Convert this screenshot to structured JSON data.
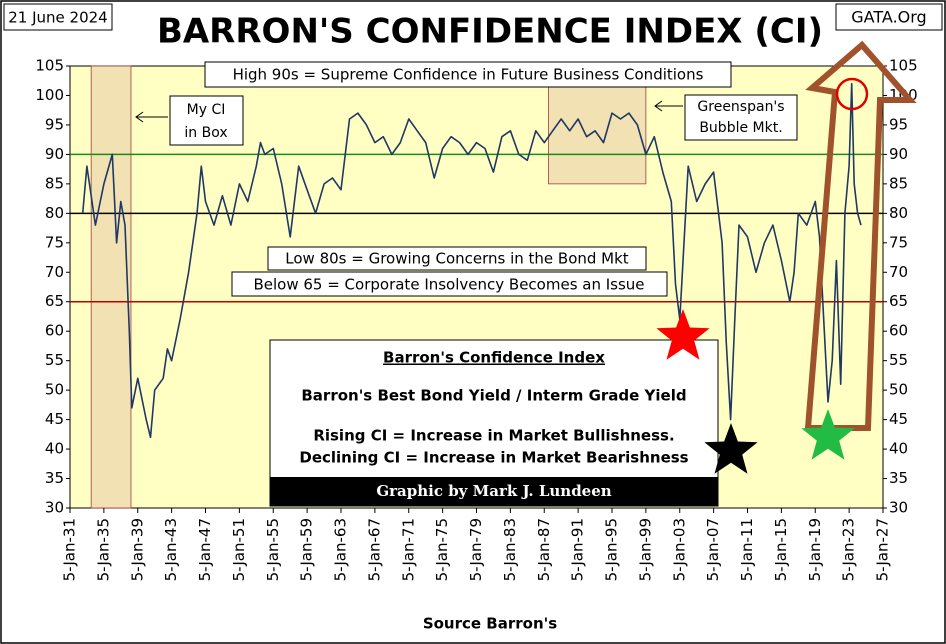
{
  "chart_data": {
    "type": "line",
    "title": "BARRON'S  CONFIDENCE  INDEX  (CI)",
    "date_note": "21 June 2024",
    "source_note": "GATA.Org",
    "x_label": "Source Barron's",
    "x": [
      1932.5,
      1933,
      1934,
      1935,
      1936,
      1936.5,
      1937,
      1937.5,
      1938,
      1938.3,
      1939,
      1940,
      1940.5,
      1941,
      1942,
      1942.5,
      1943,
      1944,
      1945,
      1946,
      1946.5,
      1947,
      1948,
      1949,
      1950,
      1951,
      1952,
      1953,
      1953.5,
      1954,
      1955,
      1956,
      1957,
      1958,
      1959,
      1960,
      1961,
      1962,
      1963,
      1964,
      1965,
      1966,
      1967,
      1968,
      1969,
      1970,
      1971,
      1972,
      1973,
      1974,
      1975,
      1976,
      1977,
      1978,
      1979,
      1980,
      1981,
      1982,
      1983,
      1984,
      1985,
      1986,
      1987,
      1988,
      1989,
      1990,
      1991,
      1992,
      1993,
      1994,
      1995,
      1996,
      1997,
      1998,
      1999,
      2000,
      2001,
      2002,
      2002.5,
      2003,
      2003.5,
      2004,
      2005,
      2006,
      2007,
      2008,
      2008.5,
      2009,
      2009.5,
      2010,
      2011,
      2012,
      2013,
      2014,
      2015,
      2016,
      2016.5,
      2017,
      2018,
      2019,
      2019.5,
      2020,
      2020.5,
      2021,
      2021.5,
      2022,
      2022.5,
      2023,
      2023.3,
      2023.6,
      2024,
      2024.4
    ],
    "series": [
      {
        "name": "Barron's Confidence Index",
        "color": "#1f3864",
        "values": [
          80,
          88,
          78,
          85,
          90,
          75,
          82,
          78,
          60,
          47,
          52,
          45,
          42,
          50,
          52,
          57,
          55,
          62,
          70,
          80,
          88,
          82,
          78,
          83,
          78,
          85,
          82,
          88,
          92,
          90,
          91,
          85,
          76,
          88,
          84,
          80,
          85,
          86,
          84,
          96,
          97,
          95,
          92,
          93,
          90,
          92,
          96,
          94,
          92,
          86,
          91,
          93,
          92,
          90,
          92,
          91,
          87,
          93,
          94,
          90,
          89,
          94,
          92,
          94,
          96,
          94,
          96,
          93,
          94,
          92,
          97,
          96,
          97,
          95,
          90,
          93,
          87,
          82,
          68,
          62,
          75,
          88,
          82,
          85,
          87,
          75,
          58,
          45,
          62,
          78,
          76,
          70,
          75,
          78,
          72,
          65,
          70,
          80,
          78,
          82,
          76,
          62,
          48,
          55,
          72,
          51,
          80,
          88,
          102,
          85,
          80,
          78
        ]
      }
    ],
    "xlim": [
      1931,
      2027
    ],
    "xticks": [
      {
        "value": 1931,
        "label": "5-Jan-31"
      },
      {
        "value": 1935,
        "label": "5-Jan-35"
      },
      {
        "value": 1939,
        "label": "5-Jan-39"
      },
      {
        "value": 1943,
        "label": "5-Jan-43"
      },
      {
        "value": 1947,
        "label": "5-Jan-47"
      },
      {
        "value": 1951,
        "label": "5-Jan-51"
      },
      {
        "value": 1955,
        "label": "5-Jan-55"
      },
      {
        "value": 1959,
        "label": "5-Jan-59"
      },
      {
        "value": 1963,
        "label": "5-Jan-63"
      },
      {
        "value": 1967,
        "label": "5-Jan-67"
      },
      {
        "value": 1971,
        "label": "5-Jan-71"
      },
      {
        "value": 1975,
        "label": "5-Jan-75"
      },
      {
        "value": 1979,
        "label": "5-Jan-79"
      },
      {
        "value": 1983,
        "label": "5-Jan-83"
      },
      {
        "value": 1987,
        "label": "5-Jan-87"
      },
      {
        "value": 1991,
        "label": "5-Jan-91"
      },
      {
        "value": 1995,
        "label": "5-Jan-95"
      },
      {
        "value": 1999,
        "label": "5-Jan-99"
      },
      {
        "value": 2003,
        "label": "5-Jan-03"
      },
      {
        "value": 2007,
        "label": "5-Jan-07"
      },
      {
        "value": 2011,
        "label": "5-Jan-11"
      },
      {
        "value": 2015,
        "label": "5-Jan-15"
      },
      {
        "value": 2019,
        "label": "5-Jan-19"
      },
      {
        "value": 2023,
        "label": "5-Jan-23"
      },
      {
        "value": 2027,
        "label": "5-Jan-27"
      }
    ],
    "ylim": [
      30,
      105
    ],
    "yticks": [
      30,
      35,
      40,
      45,
      50,
      55,
      60,
      65,
      70,
      75,
      80,
      85,
      90,
      95,
      100,
      105
    ],
    "reference_lines": [
      {
        "value": 90,
        "color": "#1a8a1a"
      },
      {
        "value": 80,
        "color": "#000000"
      },
      {
        "value": 65,
        "color": "#c00000"
      }
    ],
    "shaded_ranges": [
      {
        "x": [
          1933.5,
          1938.2
        ],
        "y": [
          30,
          105
        ]
      },
      {
        "x": [
          1987.5,
          1999
        ],
        "y": [
          85,
          101.5
        ]
      }
    ],
    "annotations": [
      "High 90s = Supreme Confidence in Future Business Conditions",
      "Low 80s = Growing Concerns in the Bond Mkt",
      "Below 65 = Corporate Insolvency Becomes an Issue",
      "My CI",
      "in Box",
      "Greenspan's",
      "Bubble Mkt."
    ],
    "info_box": {
      "title": "Barron's Confidence Index",
      "lines": [
        "Barron's Best Bond Yield / Interm Grade Yield",
        "Rising CI = Increase in Market Bullishness.",
        "Declining CI = Increase in Market Bearishness"
      ],
      "credit": "Graphic by Mark J. Lundeen"
    }
  }
}
